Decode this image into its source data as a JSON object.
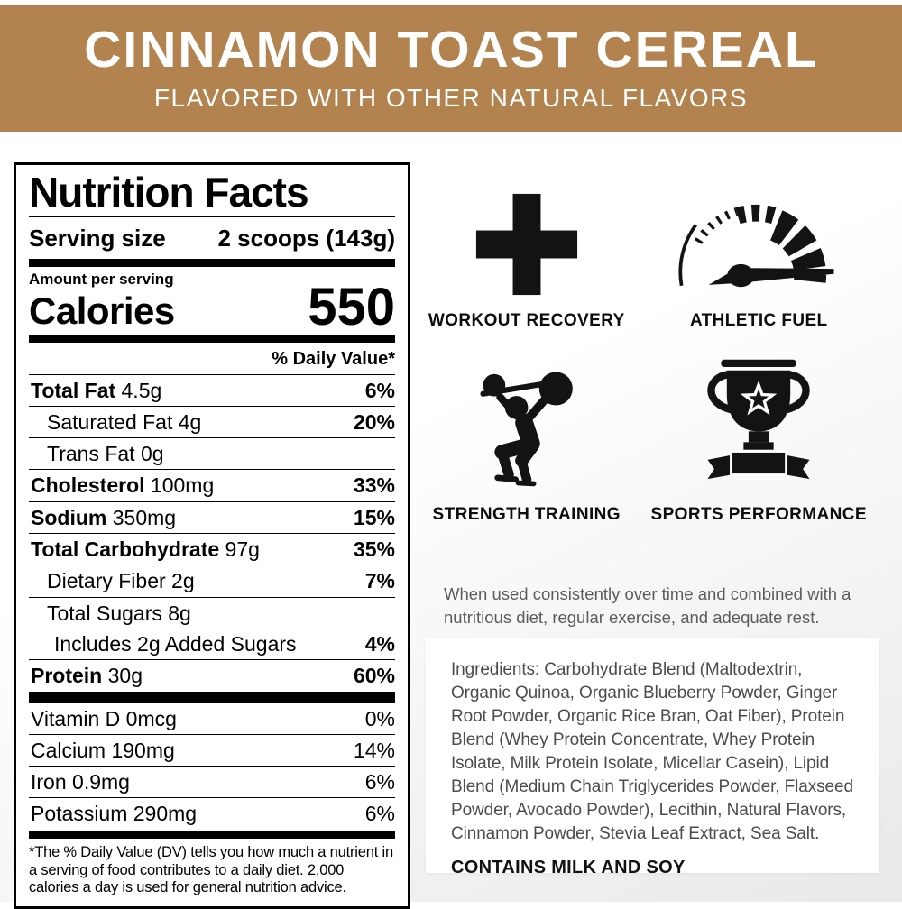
{
  "banner": {
    "title": "CINNAMON TOAST CEREAL",
    "subtitle": "FLAVORED WITH OTHER NATURAL FLAVORS",
    "bg_color": "#b3834f",
    "text_color": "#ffffff"
  },
  "nutrition_facts": {
    "title": "Nutrition Facts",
    "serving_size_label": "Serving size",
    "serving_size_value": "2 scoops (143g)",
    "amount_per_serving_label": "Amount per serving",
    "calories_label": "Calories",
    "calories_value": "550",
    "daily_value_header": "% Daily Value*",
    "rows": [
      {
        "name": "Total Fat",
        "amount": "4.5g",
        "dv": "6%",
        "bold": true,
        "indent": 0,
        "dv_bold": true
      },
      {
        "name": "Saturated Fat",
        "amount": "4g",
        "dv": "20%",
        "bold": false,
        "indent": 1,
        "dv_bold": true
      },
      {
        "name": "Trans Fat",
        "amount": "0g",
        "dv": "",
        "bold": false,
        "indent": 1,
        "dv_bold": false
      },
      {
        "name": "Cholesterol",
        "amount": "100mg",
        "dv": "33%",
        "bold": true,
        "indent": 0,
        "dv_bold": true
      },
      {
        "name": "Sodium",
        "amount": "350mg",
        "dv": "15%",
        "bold": true,
        "indent": 0,
        "dv_bold": true
      },
      {
        "name": "Total Carbohydrate",
        "amount": "97g",
        "dv": "35%",
        "bold": true,
        "indent": 0,
        "dv_bold": true
      },
      {
        "name": "Dietary Fiber",
        "amount": "2g",
        "dv": "7%",
        "bold": false,
        "indent": 1,
        "dv_bold": true
      },
      {
        "name": "Total Sugars",
        "amount": "8g",
        "dv": "",
        "bold": false,
        "indent": 1,
        "dv_bold": false
      },
      {
        "name": "Includes 2g Added Sugars",
        "amount": "",
        "dv": "4%",
        "bold": false,
        "indent": 2,
        "dv_bold": true,
        "indent_rule": true
      },
      {
        "name": "Protein",
        "amount": "30g",
        "dv": "60%",
        "bold": true,
        "indent": 0,
        "dv_bold": true
      }
    ],
    "micros": [
      {
        "name": "Vitamin D",
        "amount": "0mcg",
        "dv": "0%"
      },
      {
        "name": "Calcium",
        "amount": "190mg",
        "dv": "14%"
      },
      {
        "name": "Iron",
        "amount": "0.9mg",
        "dv": "6%"
      },
      {
        "name": "Potassium",
        "amount": "290mg",
        "dv": "6%"
      }
    ],
    "footnote": "*The % Daily Value (DV) tells you how much a nutrient in a serving of food contributes to a daily diet. 2,000 calories a day is used for general nutrition advice."
  },
  "benefits": [
    {
      "icon": "plus-icon",
      "label": "WORKOUT RECOVERY"
    },
    {
      "icon": "speedometer-icon",
      "label": "ATHLETIC FUEL"
    },
    {
      "icon": "weightlifter-icon",
      "label": "STRENGTH TRAINING"
    },
    {
      "icon": "trophy-icon",
      "label": "SPORTS PERFORMANCE"
    }
  ],
  "usage_note": "When used consistently over time and combined with a nutritious diet, regular exercise, and adequate rest.",
  "ingredients": {
    "text": "Ingredients: Carbohydrate Blend (Maltodextrin, Organic Quinoa, Organic Blueberry Powder, Ginger Root Powder, Organic Rice Bran, Oat Fiber), Protein Blend (Whey Protein Concentrate, Whey Protein Isolate, Milk Protein Isolate, Micellar Casein), Lipid Blend (Medium Chain Triglycerides Powder, Flaxseed Powder, Avocado Powder), Lecithin, Natural Flavors, Cinnamon Powder, Stevia Leaf Extract, Sea Salt.",
    "allergen": "CONTAINS MILK AND SOY"
  },
  "colors": {
    "banner_bg": "#b3834f",
    "label_ink": "#000000",
    "body_text": "#4c4c4c",
    "note_text": "#5c5c5c",
    "page_bg_end": "#e9e9e9"
  }
}
